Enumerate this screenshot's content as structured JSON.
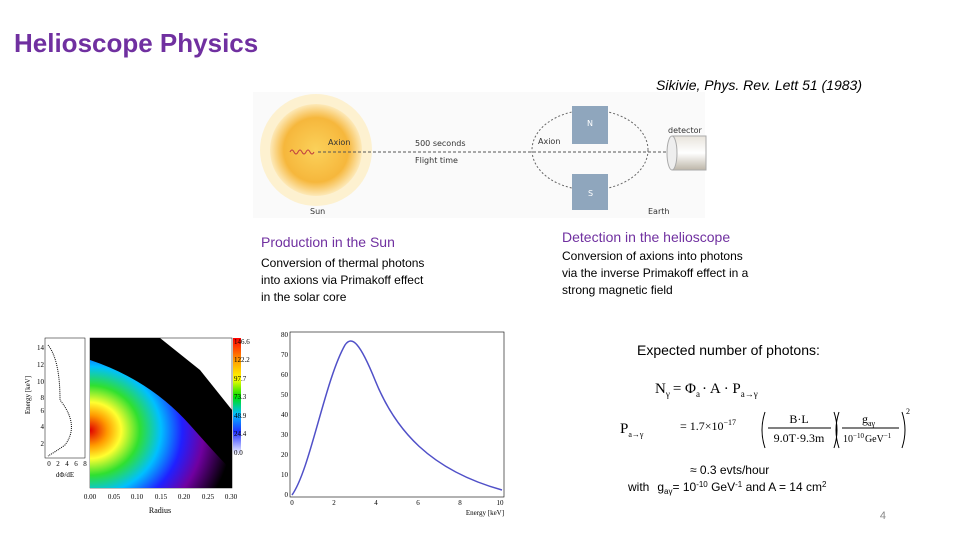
{
  "title": "Helioscope  Physics",
  "reference": "Sikivie, Phys. Rev. Lett 51 (1983)",
  "diagram": {
    "sun_axion": "Axion",
    "flight_seconds": "500 seconds",
    "flight_time": "Flight time",
    "sun": "Sun",
    "north": "N",
    "south": "S",
    "magnet_axion": "Axion",
    "detector": "detector",
    "earth": "Earth"
  },
  "production": {
    "heading": "Production in the Sun",
    "lines": [
      "Conversion of thermal photons",
      "into axions via Primakoff effect",
      "in the solar core"
    ]
  },
  "detection": {
    "heading": "Detection in the helioscope",
    "lines": [
      "Conversion of axions into photons",
      "via the inverse Primakoff effect in a",
      "strong magnetic field"
    ]
  },
  "expected": "Expected number of  photons:",
  "formula_n": {
    "lhs": "N",
    "lhs_sub": "γ",
    "rhs": "= Φ",
    "phi_sub": "a",
    "mid": "· A · P",
    "p_sub": "a→γ"
  },
  "formula_p": {
    "lhs": "P",
    "lhs_sub": "a→γ",
    "coef": "= 1.7×10",
    "coef_exp": "−17",
    "num1": "B·L",
    "den1": "9.0T·9.3m",
    "num2": "g",
    "num2_sub": "aγ",
    "den2": "10",
    "den2_exp": "−10",
    "den2_unit": "GeV",
    "den2_unit_exp": "−1",
    "power": "2"
  },
  "rate": "≈ 0.3 evts/hour",
  "with_line": {
    "with": "with",
    "g": "g",
    "g_sub": "aγ",
    "eq": "= 10",
    "eq_exp": "-10",
    "unit": " GeV",
    "unit_exp": "-1",
    "area": " and A = 14 cm",
    "area_exp": "2"
  },
  "figures": {
    "heatmap": {
      "y_label": "Energy [keV]",
      "y_ticks": [
        "14",
        "12",
        "10",
        "8",
        "6",
        "4",
        "2"
      ],
      "x_label": "Radius",
      "x_ticks": [
        "0.00",
        "0.05",
        "0.10",
        "0.15",
        "0.20",
        "0.25",
        "0.30"
      ],
      "inset_ticks": [
        "0",
        "2",
        "4",
        "6",
        "8"
      ],
      "inset_label": "dΦ/dE",
      "colorbar_ticks": [
        "146.6",
        "122.2",
        "97.7",
        "73.3",
        "48.9",
        "24.4",
        "0.0"
      ]
    },
    "spectrum": {
      "x_label": "Energy [keV]",
      "y_ticks": [
        "80",
        "70",
        "60",
        "50",
        "40",
        "30",
        "20",
        "10",
        "0"
      ],
      "x_ticks": [
        "0",
        "2",
        "4",
        "6",
        "8",
        "10"
      ]
    }
  },
  "page_number": "4"
}
